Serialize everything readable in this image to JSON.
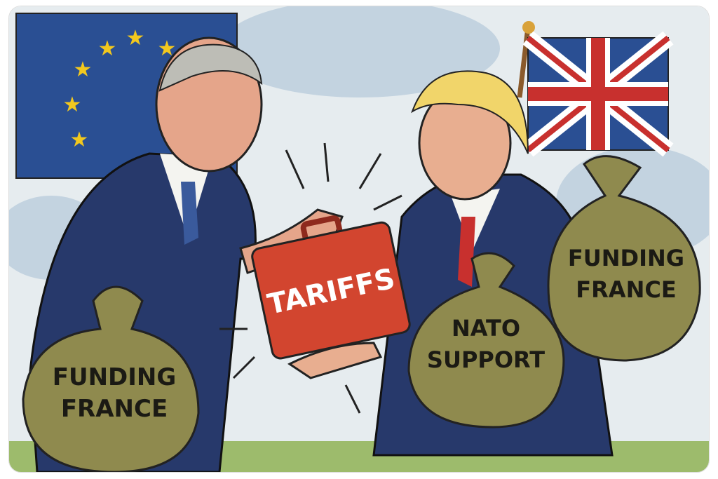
{
  "cartoon": {
    "briefcase_label": "TARIFFS",
    "left_bag": {
      "line1": "FUNDING",
      "line2": "FRANCE"
    },
    "right_bag_front": {
      "line1": "NATO",
      "line2": "SUPPORT"
    },
    "right_bag_back": {
      "line1": "FUNDING",
      "line2": "FRANCE"
    }
  },
  "colors": {
    "sky": "#cfdce6",
    "eu_blue": "#2a4f93",
    "eu_star": "#f2c81e",
    "uk_red": "#c8302e",
    "suit": "#27396b",
    "briefcase": "#d2452f",
    "bag": "#8f8a4e"
  }
}
